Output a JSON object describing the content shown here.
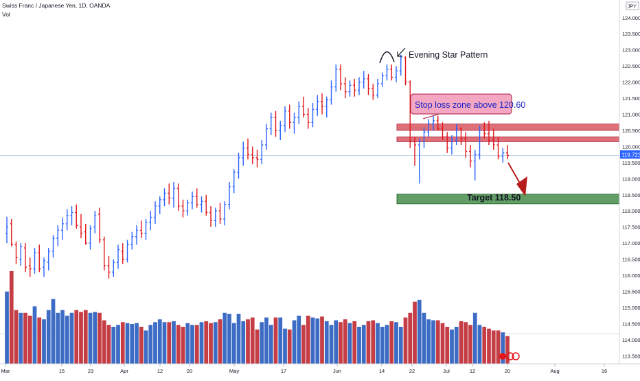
{
  "legend": {
    "title": "Swiss Franc / Japanese Yen, 1D, OANDA",
    "volume_label": "Vol"
  },
  "colors": {
    "up": "#2962ff",
    "down": "#e0161b",
    "vol_up": "#3d6cc4",
    "vol_down": "#c53d45",
    "grid_line": "#b2c8e6",
    "axis_text": "#131722",
    "resistance_zone": "#d0353f",
    "target_zone": "#2e7d32",
    "annotation_box_fill": "#f3a7c3",
    "annotation_box_border": "#a81c3c",
    "annotation_text": "#1a23c8",
    "last_price_badge": "#2962ff"
  },
  "axis": {
    "currency_badge": "JPY",
    "price_ticks": [
      "124.000",
      "123.500",
      "123.000",
      "122.500",
      "122.000",
      "121.500",
      "121.000",
      "120.500",
      "120.000",
      "119.500",
      "119.000",
      "118.500",
      "118.000",
      "117.500",
      "117.000",
      "116.500",
      "116.000",
      "115.500",
      "115.000",
      "114.500",
      "114.000",
      "113.500"
    ],
    "date_ticks": [
      "Mar",
      "15",
      "23",
      "Apr",
      "12",
      "20",
      "May",
      "17",
      "Jun",
      "14",
      "22",
      "Jul",
      "12",
      "20",
      "Aug",
      "16"
    ],
    "last_price": "119.723"
  },
  "annotations": {
    "pattern_label": "Evening Star Pattern",
    "stop_loss_label": "Stop loss zone above 120.60",
    "target_label": "Target 118.50"
  },
  "chart_data": {
    "type": "bar",
    "description_series": "OHLC bars",
    "instrument": "Swiss Franc / Japanese Yen, 1D, OANDA",
    "ylim": [
      113.25,
      124.55
    ],
    "last_price": 119.723,
    "zones": [
      {
        "name": "Stop loss zone above 120.60",
        "from": 120.5,
        "to": 120.7
      },
      {
        "name": "resistance zone",
        "from": 120.15,
        "to": 120.3
      },
      {
        "name": "Target 118.50",
        "from": 118.22,
        "to": 118.52
      }
    ],
    "bars": [
      {
        "o": 117.3,
        "h": 117.82,
        "l": 117.0,
        "c": 117.5
      },
      {
        "o": 117.6,
        "h": 117.75,
        "l": 116.9,
        "c": 116.95
      },
      {
        "o": 116.95,
        "h": 117.05,
        "l": 116.35,
        "c": 116.55
      },
      {
        "o": 116.5,
        "h": 117.0,
        "l": 116.3,
        "c": 116.9
      },
      {
        "o": 116.85,
        "h": 117.0,
        "l": 116.1,
        "c": 116.25
      },
      {
        "o": 116.3,
        "h": 116.55,
        "l": 115.95,
        "c": 116.2
      },
      {
        "o": 116.2,
        "h": 116.85,
        "l": 116.05,
        "c": 116.7
      },
      {
        "o": 116.7,
        "h": 116.95,
        "l": 116.1,
        "c": 116.2
      },
      {
        "o": 116.25,
        "h": 116.55,
        "l": 115.95,
        "c": 116.45
      },
      {
        "o": 116.4,
        "h": 116.85,
        "l": 116.15,
        "c": 116.75
      },
      {
        "o": 116.75,
        "h": 117.25,
        "l": 116.55,
        "c": 117.15
      },
      {
        "o": 117.15,
        "h": 117.55,
        "l": 116.9,
        "c": 117.4
      },
      {
        "o": 117.4,
        "h": 117.8,
        "l": 117.1,
        "c": 117.6
      },
      {
        "o": 117.6,
        "h": 118.05,
        "l": 117.4,
        "c": 117.85
      },
      {
        "o": 117.85,
        "h": 118.15,
        "l": 117.55,
        "c": 117.95
      },
      {
        "o": 117.95,
        "h": 118.2,
        "l": 117.45,
        "c": 117.55
      },
      {
        "o": 117.5,
        "h": 117.9,
        "l": 117.15,
        "c": 117.3
      },
      {
        "o": 117.35,
        "h": 117.6,
        "l": 116.95,
        "c": 117.0
      },
      {
        "o": 117.0,
        "h": 117.55,
        "l": 116.8,
        "c": 117.45
      },
      {
        "o": 117.5,
        "h": 118.0,
        "l": 117.3,
        "c": 117.85
      },
      {
        "o": 117.9,
        "h": 118.1,
        "l": 117.0,
        "c": 117.1
      },
      {
        "o": 117.1,
        "h": 117.2,
        "l": 116.15,
        "c": 116.3
      },
      {
        "o": 116.3,
        "h": 116.6,
        "l": 115.9,
        "c": 116.1
      },
      {
        "o": 116.1,
        "h": 116.5,
        "l": 115.95,
        "c": 116.4
      },
      {
        "o": 116.4,
        "h": 116.95,
        "l": 116.2,
        "c": 116.8
      },
      {
        "o": 116.75,
        "h": 117.0,
        "l": 116.35,
        "c": 116.5
      },
      {
        "o": 116.5,
        "h": 117.1,
        "l": 116.4,
        "c": 116.95
      },
      {
        "o": 116.95,
        "h": 117.35,
        "l": 116.8,
        "c": 117.2
      },
      {
        "o": 117.2,
        "h": 117.55,
        "l": 116.95,
        "c": 117.4
      },
      {
        "o": 117.4,
        "h": 117.7,
        "l": 117.15,
        "c": 117.3
      },
      {
        "o": 117.3,
        "h": 117.75,
        "l": 117.1,
        "c": 117.65
      },
      {
        "o": 117.65,
        "h": 118.0,
        "l": 117.4,
        "c": 117.8
      },
      {
        "o": 117.8,
        "h": 118.3,
        "l": 117.6,
        "c": 118.15
      },
      {
        "o": 118.15,
        "h": 118.45,
        "l": 117.9,
        "c": 118.35
      },
      {
        "o": 118.35,
        "h": 118.7,
        "l": 118.15,
        "c": 118.55
      },
      {
        "o": 118.55,
        "h": 118.85,
        "l": 118.2,
        "c": 118.4
      },
      {
        "o": 118.4,
        "h": 118.9,
        "l": 118.1,
        "c": 118.7
      },
      {
        "o": 118.7,
        "h": 118.85,
        "l": 118.0,
        "c": 118.15
      },
      {
        "o": 118.15,
        "h": 118.35,
        "l": 117.8,
        "c": 118.0
      },
      {
        "o": 118.0,
        "h": 118.35,
        "l": 117.85,
        "c": 118.25
      },
      {
        "o": 118.25,
        "h": 118.6,
        "l": 118.05,
        "c": 118.45
      },
      {
        "o": 118.45,
        "h": 118.7,
        "l": 118.1,
        "c": 118.2
      },
      {
        "o": 118.2,
        "h": 118.45,
        "l": 117.95,
        "c": 118.3
      },
      {
        "o": 118.3,
        "h": 118.5,
        "l": 117.85,
        "c": 117.95
      },
      {
        "o": 117.95,
        "h": 118.15,
        "l": 117.5,
        "c": 117.7
      },
      {
        "o": 117.7,
        "h": 118.1,
        "l": 117.5,
        "c": 118.0
      },
      {
        "o": 118.0,
        "h": 118.25,
        "l": 117.6,
        "c": 117.75
      },
      {
        "o": 117.75,
        "h": 118.3,
        "l": 117.55,
        "c": 118.2
      },
      {
        "o": 118.2,
        "h": 118.9,
        "l": 118.05,
        "c": 118.75
      },
      {
        "o": 118.75,
        "h": 119.3,
        "l": 118.55,
        "c": 119.2
      },
      {
        "o": 119.2,
        "h": 119.8,
        "l": 119.0,
        "c": 119.65
      },
      {
        "o": 119.65,
        "h": 120.15,
        "l": 119.4,
        "c": 119.95
      },
      {
        "o": 119.95,
        "h": 120.25,
        "l": 119.6,
        "c": 119.75
      },
      {
        "o": 119.75,
        "h": 120.0,
        "l": 119.45,
        "c": 119.65
      },
      {
        "o": 119.65,
        "h": 119.9,
        "l": 119.35,
        "c": 119.6
      },
      {
        "o": 119.6,
        "h": 120.2,
        "l": 119.45,
        "c": 120.05
      },
      {
        "o": 120.05,
        "h": 120.7,
        "l": 119.9,
        "c": 120.55
      },
      {
        "o": 120.55,
        "h": 121.05,
        "l": 120.35,
        "c": 120.9
      },
      {
        "o": 120.9,
        "h": 121.1,
        "l": 120.3,
        "c": 120.5
      },
      {
        "o": 120.5,
        "h": 120.8,
        "l": 120.2,
        "c": 120.65
      },
      {
        "o": 120.65,
        "h": 121.25,
        "l": 120.45,
        "c": 121.1
      },
      {
        "o": 121.1,
        "h": 121.3,
        "l": 120.55,
        "c": 120.75
      },
      {
        "o": 120.75,
        "h": 121.05,
        "l": 120.4,
        "c": 120.9
      },
      {
        "o": 120.9,
        "h": 121.4,
        "l": 120.7,
        "c": 121.25
      },
      {
        "o": 121.25,
        "h": 121.55,
        "l": 120.9,
        "c": 121.0
      },
      {
        "o": 121.0,
        "h": 121.2,
        "l": 120.55,
        "c": 120.75
      },
      {
        "o": 120.75,
        "h": 121.35,
        "l": 120.6,
        "c": 121.15
      },
      {
        "o": 121.15,
        "h": 121.6,
        "l": 120.95,
        "c": 121.4
      },
      {
        "o": 121.4,
        "h": 121.65,
        "l": 121.0,
        "c": 121.25
      },
      {
        "o": 121.25,
        "h": 121.55,
        "l": 120.9,
        "c": 121.45
      },
      {
        "o": 121.45,
        "h": 122.05,
        "l": 121.3,
        "c": 121.85
      },
      {
        "o": 121.85,
        "h": 122.55,
        "l": 121.7,
        "c": 122.4
      },
      {
        "o": 122.4,
        "h": 122.55,
        "l": 121.75,
        "c": 121.95
      },
      {
        "o": 121.95,
        "h": 122.15,
        "l": 121.5,
        "c": 121.7
      },
      {
        "o": 121.7,
        "h": 122.05,
        "l": 121.55,
        "c": 121.9
      },
      {
        "o": 121.9,
        "h": 122.1,
        "l": 121.55,
        "c": 121.75
      },
      {
        "o": 121.75,
        "h": 122.15,
        "l": 121.6,
        "c": 122.0
      },
      {
        "o": 122.0,
        "h": 122.35,
        "l": 121.8,
        "c": 122.1
      },
      {
        "o": 122.1,
        "h": 122.25,
        "l": 121.6,
        "c": 121.8
      },
      {
        "o": 121.8,
        "h": 121.95,
        "l": 121.45,
        "c": 121.6
      },
      {
        "o": 121.6,
        "h": 122.1,
        "l": 121.5,
        "c": 121.95
      },
      {
        "o": 121.95,
        "h": 122.3,
        "l": 121.85,
        "c": 122.2
      },
      {
        "o": 122.2,
        "h": 122.55,
        "l": 122.05,
        "c": 122.4
      },
      {
        "o": 122.4,
        "h": 122.55,
        "l": 122.05,
        "c": 122.15
      },
      {
        "o": 122.15,
        "h": 122.5,
        "l": 122.0,
        "c": 122.35
      },
      {
        "o": 122.35,
        "h": 122.85,
        "l": 122.2,
        "c": 122.75
      },
      {
        "o": 122.75,
        "h": 122.8,
        "l": 121.9,
        "c": 122.0
      },
      {
        "o": 122.0,
        "h": 122.05,
        "l": 119.95,
        "c": 120.15
      },
      {
        "o": 120.15,
        "h": 120.3,
        "l": 119.4,
        "c": 120.05
      },
      {
        "o": 120.05,
        "h": 120.25,
        "l": 118.85,
        "c": 120.15
      },
      {
        "o": 120.15,
        "h": 120.6,
        "l": 119.95,
        "c": 120.45
      },
      {
        "o": 120.45,
        "h": 120.85,
        "l": 120.3,
        "c": 120.7
      },
      {
        "o": 120.7,
        "h": 120.95,
        "l": 120.5,
        "c": 120.8
      },
      {
        "o": 120.8,
        "h": 120.95,
        "l": 120.5,
        "c": 120.55
      },
      {
        "o": 120.55,
        "h": 120.75,
        "l": 120.2,
        "c": 120.3
      },
      {
        "o": 120.3,
        "h": 120.45,
        "l": 119.8,
        "c": 119.95
      },
      {
        "o": 119.95,
        "h": 120.35,
        "l": 119.75,
        "c": 120.2
      },
      {
        "o": 120.2,
        "h": 120.7,
        "l": 120.05,
        "c": 120.55
      },
      {
        "o": 120.55,
        "h": 120.6,
        "l": 120.05,
        "c": 120.25
      },
      {
        "o": 120.25,
        "h": 120.45,
        "l": 119.65,
        "c": 119.85
      },
      {
        "o": 119.85,
        "h": 120.05,
        "l": 119.35,
        "c": 119.55
      },
      {
        "o": 119.55,
        "h": 119.9,
        "l": 118.95,
        "c": 119.75
      },
      {
        "o": 119.75,
        "h": 120.65,
        "l": 119.6,
        "c": 120.5
      },
      {
        "o": 120.5,
        "h": 120.75,
        "l": 120.25,
        "c": 120.4
      },
      {
        "o": 120.4,
        "h": 120.8,
        "l": 120.05,
        "c": 120.2
      },
      {
        "o": 120.2,
        "h": 120.55,
        "l": 119.9,
        "c": 120.05
      },
      {
        "o": 120.05,
        "h": 120.3,
        "l": 119.6,
        "c": 119.7
      },
      {
        "o": 119.7,
        "h": 119.95,
        "l": 119.5,
        "c": 119.8
      },
      {
        "o": 119.8,
        "h": 120.05,
        "l": 119.6,
        "c": 119.72
      }
    ],
    "volume": [
      78,
      100,
      58,
      55,
      55,
      52,
      62,
      50,
      48,
      58,
      70,
      55,
      58,
      52,
      55,
      58,
      56,
      58,
      55,
      56,
      55,
      47,
      42,
      40,
      42,
      45,
      44,
      43,
      44,
      40,
      36,
      42,
      45,
      48,
      45,
      45,
      46,
      42,
      40,
      44,
      42,
      42,
      45,
      46,
      44,
      45,
      48,
      55,
      54,
      44,
      54,
      46,
      48,
      50,
      37,
      45,
      50,
      42,
      50,
      50,
      38,
      37,
      47,
      52,
      42,
      52,
      50,
      49,
      51,
      46,
      42,
      47,
      45,
      48,
      44,
      46,
      40,
      42,
      46,
      47,
      44,
      40,
      42,
      46,
      45,
      40,
      50,
      55,
      67,
      69,
      55,
      48,
      47,
      47,
      44,
      40,
      37,
      40,
      46,
      45,
      42,
      55,
      42,
      40,
      38,
      36,
      36,
      34,
      30
    ]
  }
}
